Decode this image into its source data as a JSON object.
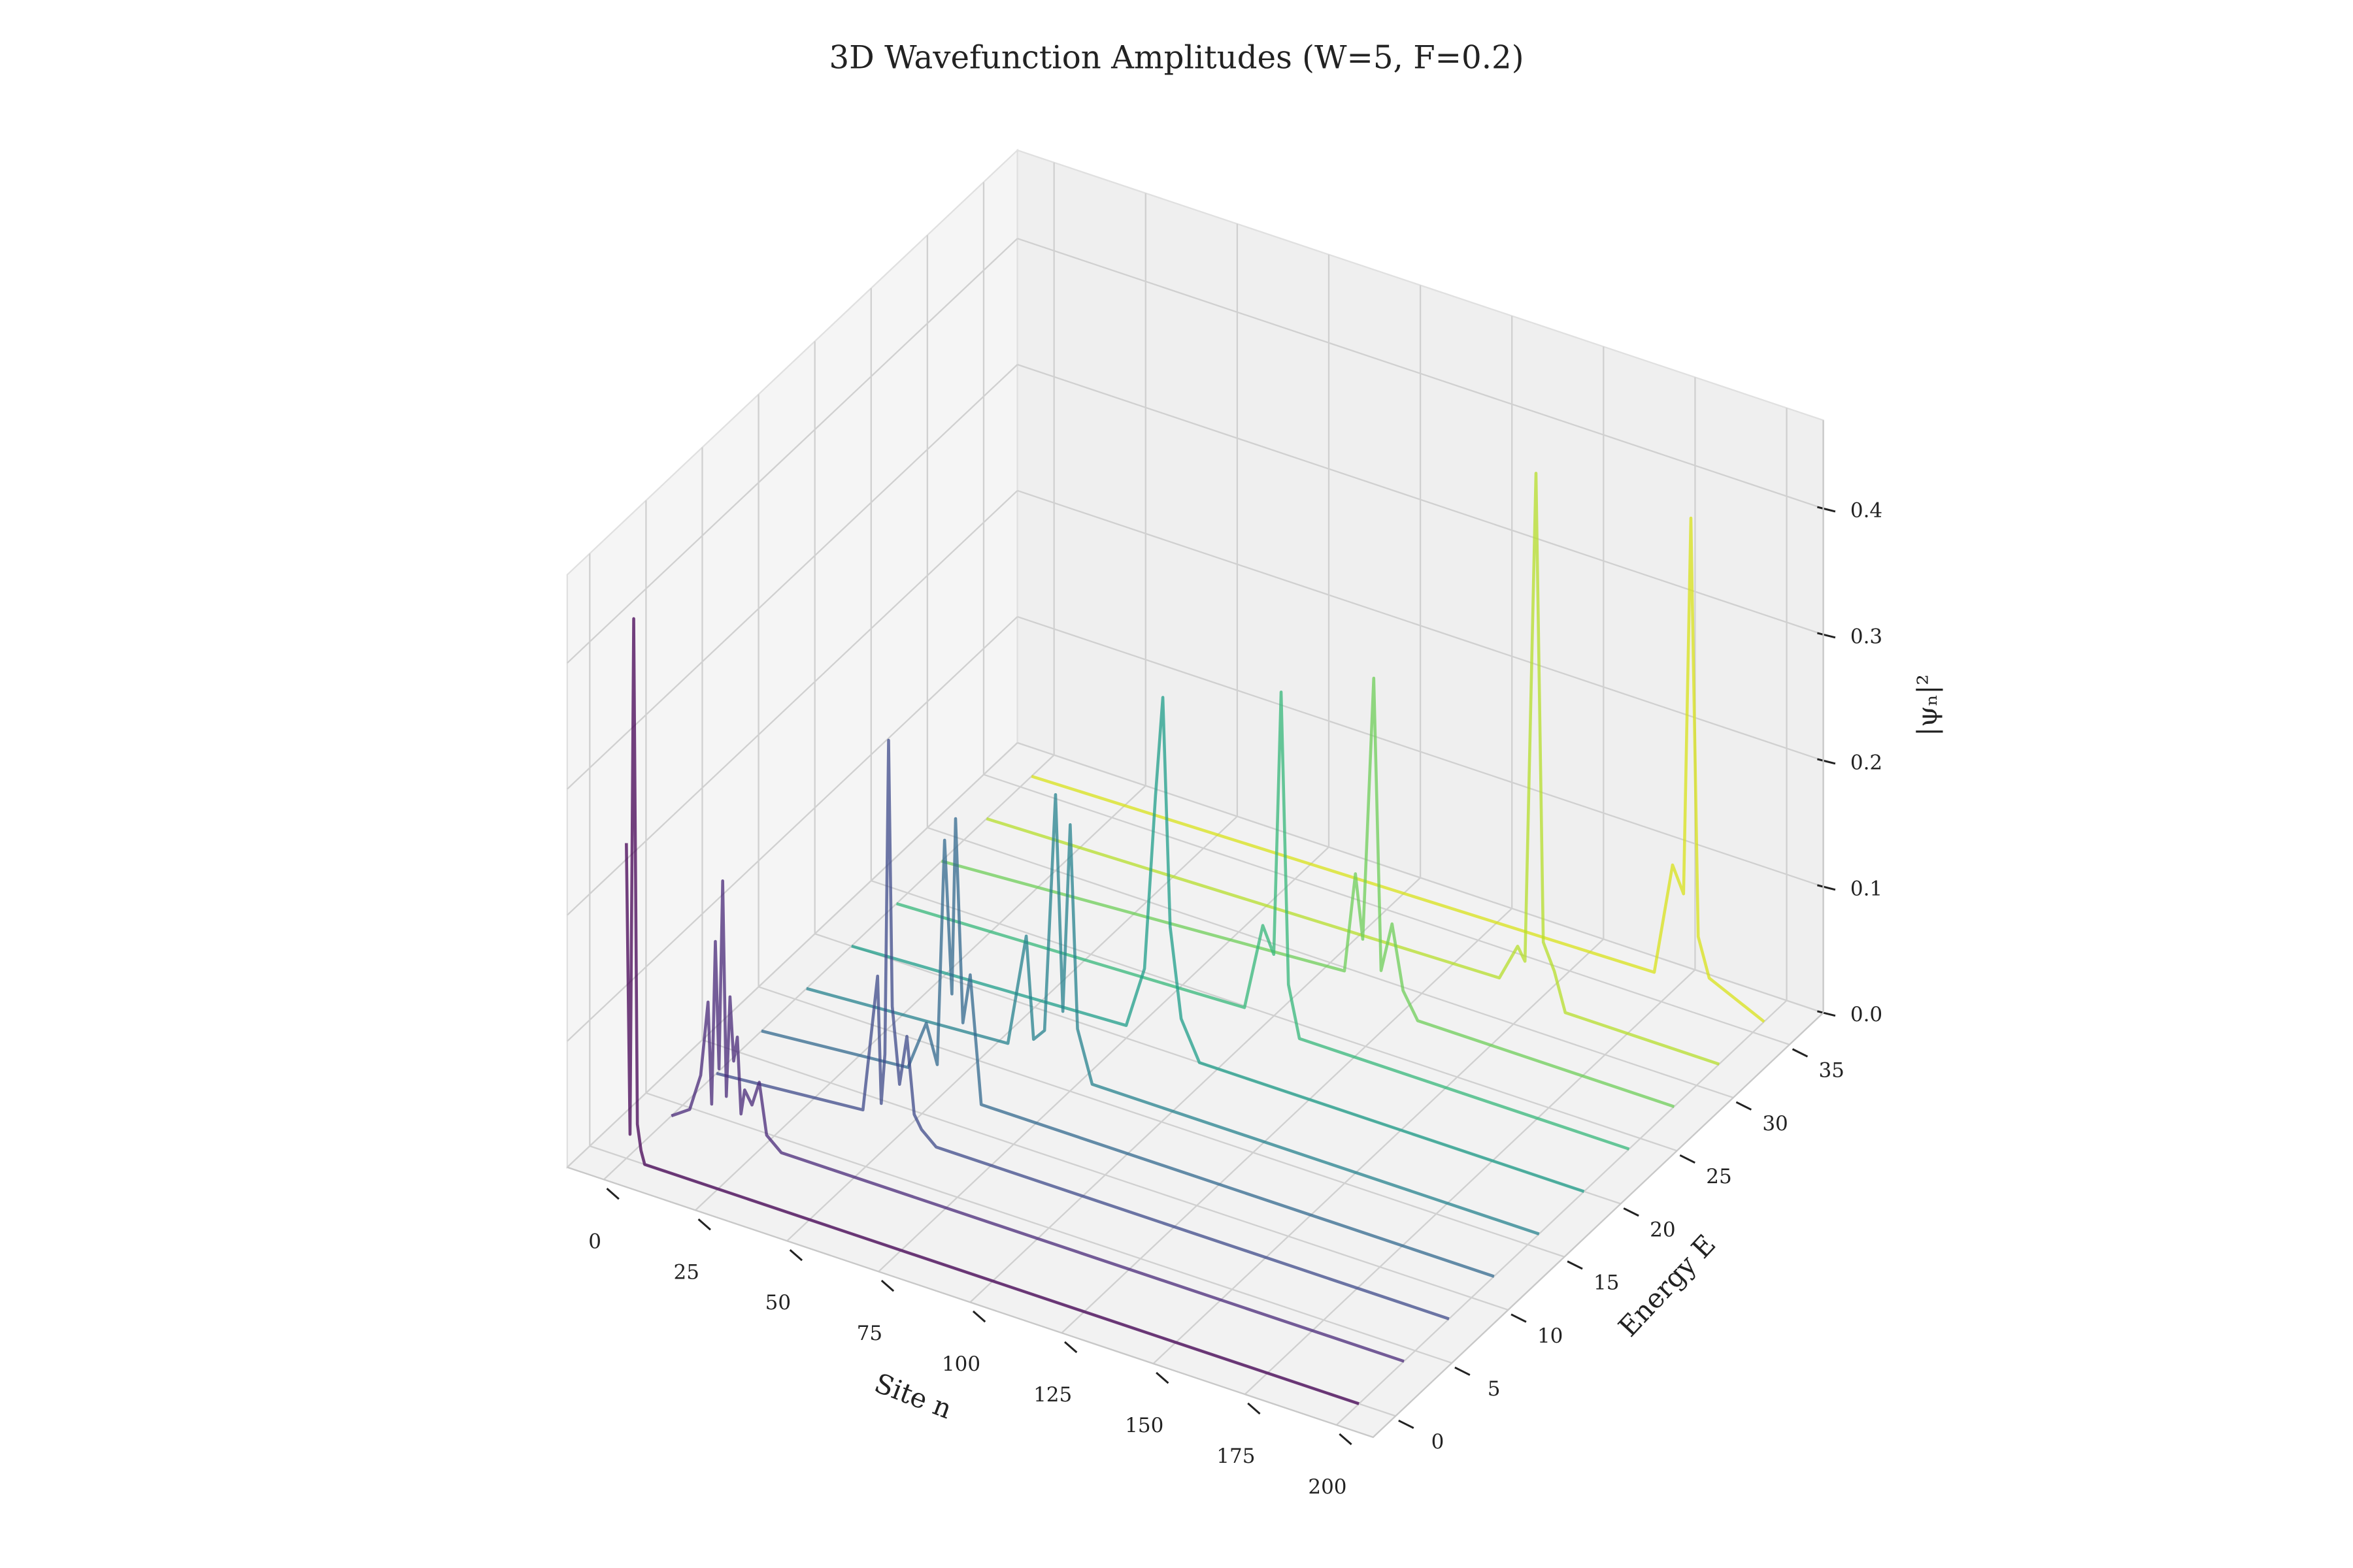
{
  "chart_data": {
    "type": "waterfall3d",
    "title": "3D Wavefunction Amplitudes (W=5, F=0.2)",
    "xlabel": "Site n",
    "ylabel": "Energy E",
    "zlabel": "|ψₙ|²",
    "xlim": [
      -10,
      210
    ],
    "ylim": [
      -2,
      38
    ],
    "zlim": [
      0,
      0.47
    ],
    "xticks": [
      0,
      25,
      50,
      75,
      100,
      125,
      150,
      175,
      200
    ],
    "yticks": [
      0,
      5,
      10,
      15,
      20,
      25,
      30,
      35
    ],
    "zticks": [
      {
        "value": 0,
        "label": "0.0"
      },
      0.1,
      0.2,
      0.3,
      0.4
    ],
    "grid": true,
    "series": [
      {
        "energy": 0,
        "color": "#440154",
        "x": [
          0,
          1,
          2,
          3,
          4,
          5,
          8,
          200
        ],
        "values": [
          0.25,
          0.02,
          0.43,
          0.03,
          0.01,
          0,
          0,
          0
        ]
      },
      {
        "energy": 4,
        "color": "#482878",
        "x": [
          0,
          5,
          8,
          10,
          11,
          12,
          13,
          14,
          15,
          16,
          17,
          18,
          19,
          20,
          22,
          24,
          26,
          30,
          200
        ],
        "values": [
          0,
          0.01,
          0.04,
          0.1,
          0.02,
          0.15,
          0.05,
          0.2,
          0.03,
          0.11,
          0.06,
          0.08,
          0.02,
          0.04,
          0.03,
          0.05,
          0.01,
          0,
          0
        ]
      },
      {
        "energy": 8,
        "color": "#3e4989",
        "x": [
          0,
          40,
          44,
          45,
          46,
          47,
          48,
          50,
          52,
          54,
          56,
          60,
          200
        ],
        "values": [
          0,
          0.01,
          0.12,
          0.02,
          0.06,
          0.31,
          0.1,
          0.04,
          0.08,
          0.02,
          0.01,
          0,
          0
        ]
      },
      {
        "energy": 12,
        "color": "#31688e",
        "x": [
          0,
          40,
          45,
          48,
          50,
          52,
          53,
          55,
          57,
          60,
          200
        ],
        "values": [
          0,
          0.01,
          0.05,
          0.02,
          0.2,
          0.08,
          0.22,
          0.06,
          0.1,
          0,
          0
        ]
      },
      {
        "energy": 16,
        "color": "#26828e",
        "x": [
          0,
          55,
          60,
          62,
          65,
          68,
          70,
          72,
          74,
          78,
          200
        ],
        "values": [
          0,
          0.01,
          0.1,
          0.02,
          0.03,
          0.22,
          0.05,
          0.2,
          0.04,
          0,
          0
        ]
      },
      {
        "energy": 20,
        "color": "#1f9e89",
        "x": [
          0,
          75,
          80,
          83,
          85,
          87,
          90,
          95,
          200
        ],
        "values": [
          0,
          0.01,
          0.06,
          0.2,
          0.28,
          0.1,
          0.03,
          0,
          0
        ]
      },
      {
        "energy": 24,
        "color": "#35b779",
        "x": [
          0,
          95,
          100,
          103,
          105,
          107,
          110,
          200
        ],
        "values": [
          0,
          0.01,
          0.08,
          0.06,
          0.27,
          0.04,
          0,
          0
        ]
      },
      {
        "energy": 28,
        "color": "#6ece58",
        "x": [
          0,
          110,
          113,
          115,
          118,
          120,
          123,
          126,
          130,
          200
        ],
        "values": [
          0,
          0.02,
          0.1,
          0.05,
          0.26,
          0.03,
          0.07,
          0.02,
          0,
          0
        ]
      },
      {
        "energy": 32,
        "color": "#b5de2b",
        "x": [
          0,
          140,
          145,
          147,
          150,
          152,
          155,
          158,
          200
        ],
        "values": [
          0,
          0.01,
          0.04,
          0.03,
          0.42,
          0.05,
          0.03,
          0,
          0
        ]
      },
      {
        "energy": 36,
        "color": "#d8e219",
        "x": [
          0,
          170,
          175,
          178,
          180,
          182,
          185,
          200
        ],
        "values": [
          0,
          0.01,
          0.1,
          0.08,
          0.38,
          0.05,
          0.02,
          0
        ]
      }
    ]
  }
}
